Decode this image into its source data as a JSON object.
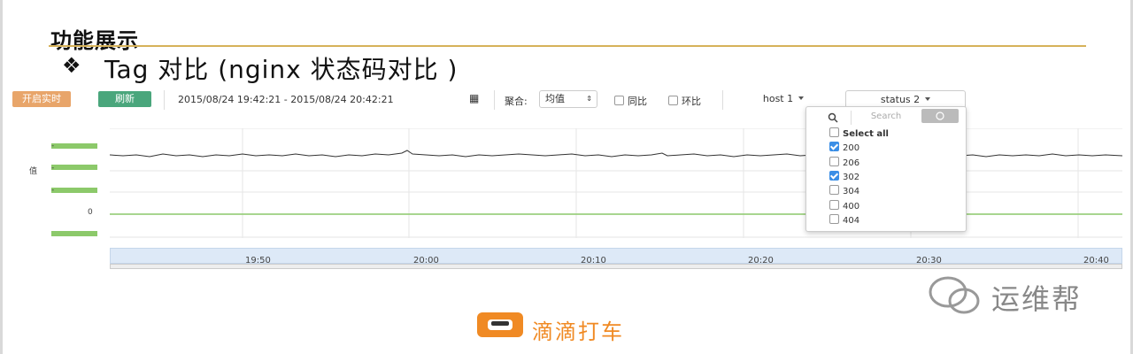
{
  "slide": {
    "title": "功能展示",
    "subtitle": "Tag 对比 (nginx 状态码对比 )"
  },
  "toolbar": {
    "realtime_label": "开启实时",
    "refresh_label": "刷新",
    "time_range": "2015/08/24 19:42:21 - 2015/08/24 20:42:21",
    "aggregate_label": "聚合:",
    "aggregate_value": "均值",
    "yoy_label": "同比",
    "mom_label": "环比",
    "host_select": "host 1",
    "status_select": "status 2"
  },
  "chart": {
    "y_axis_label": "值",
    "zero_tick": "0",
    "x_ticks": [
      "19:50",
      "20:00",
      "20:10",
      "20:20",
      "20:30",
      "20:40"
    ]
  },
  "status_dropdown": {
    "search_placeholder": "Search",
    "select_all": "Select all",
    "options": [
      {
        "label": "200",
        "checked": true
      },
      {
        "label": "206",
        "checked": false
      },
      {
        "label": "302",
        "checked": true
      },
      {
        "label": "304",
        "checked": false
      },
      {
        "label": "400",
        "checked": false
      },
      {
        "label": "404",
        "checked": false
      }
    ]
  },
  "branding": {
    "watermark": "运维帮",
    "logo_text": "滴滴打车"
  },
  "colors": {
    "title_rule": "#d6b25a",
    "realtime_button": "#e8a56a",
    "refresh_button": "#4aa67c",
    "line": "#333333",
    "baseline": "#8cc96a",
    "checkbox_checked": "#3a8ee6",
    "logo": "#f08a24"
  }
}
